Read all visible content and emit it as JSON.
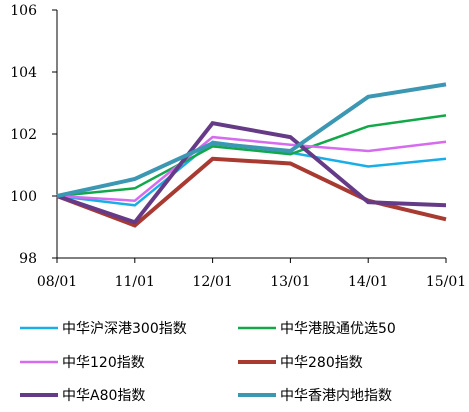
{
  "chart_data": {
    "type": "line",
    "title": "",
    "xlabel": "",
    "ylabel": "",
    "categories": [
      "08/01",
      "11/01",
      "12/01",
      "13/01",
      "14/01",
      "15/01"
    ],
    "ylim": [
      98,
      106
    ],
    "yticks": [
      "98",
      "100",
      "102",
      "104",
      "106"
    ],
    "grid": false,
    "legend_position": "bottom",
    "series": [
      {
        "name": "中华沪深港300指数",
        "color": "#1aaee6",
        "values": [
          100.0,
          99.7,
          101.75,
          101.4,
          100.95,
          101.2
        ]
      },
      {
        "name": "中华港股通优选50",
        "color": "#12a84a",
        "values": [
          100.0,
          100.25,
          101.6,
          101.35,
          102.25,
          102.6
        ]
      },
      {
        "name": "中华120指数",
        "color": "#d66bf0",
        "values": [
          100.0,
          99.85,
          101.9,
          101.65,
          101.45,
          101.75
        ]
      },
      {
        "name": "中华280指数",
        "color": "#a83a32",
        "values": [
          100.0,
          99.05,
          101.2,
          101.05,
          99.85,
          99.25
        ]
      },
      {
        "name": "中华A80指数",
        "color": "#653a86",
        "values": [
          100.0,
          99.15,
          102.35,
          101.9,
          99.8,
          99.7
        ]
      },
      {
        "name": "中华香港内地指数",
        "color": "#3b97b2",
        "values": [
          100.0,
          100.55,
          101.7,
          101.45,
          103.2,
          103.6
        ]
      }
    ]
  }
}
